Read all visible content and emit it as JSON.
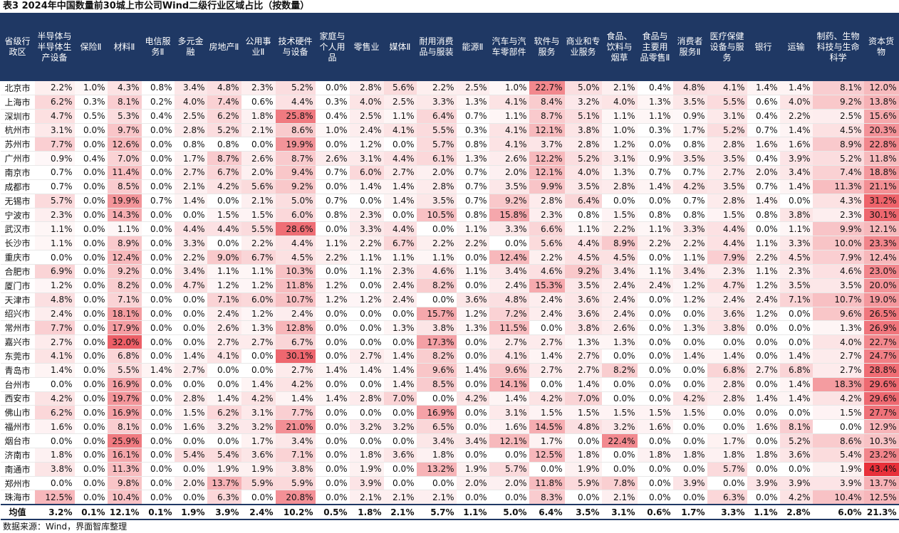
{
  "title": "表3 2024年中国数量前30城上市公司Wind二级行业区域占比（按数量）",
  "source": "数据来源：Wind，界面智库整理",
  "heat_color": "#e8303a",
  "header_color": "#1f3864",
  "columns": [
    "省级行政区",
    "半导体与半导体生产设备",
    "保险Ⅱ",
    "材料Ⅱ",
    "电信服务Ⅱ",
    "多元金融",
    "房地产Ⅱ",
    "公用事业Ⅱ",
    "技术硬件与设备",
    "家庭与个人用品",
    "零售业",
    "媒体Ⅱ",
    "耐用消费品与服装",
    "能源Ⅱ",
    "汽车与汽车零部件",
    "软件与服务",
    "商业和专业服务",
    "食品、饮料与烟草",
    "食品与主要用品零售Ⅱ",
    "消费者服务Ⅱ",
    "医疗保健设备与服务",
    "银行",
    "运输",
    "制药、生物科技与生命科学",
    "资本货物"
  ],
  "rows": [
    {
      "city": "北京市",
      "values": [
        "2.2%",
        "1.0%",
        "4.3%",
        "0.8%",
        "3.4%",
        "4.8%",
        "2.3%",
        "5.2%",
        "0.0%",
        "2.8%",
        "5.6%",
        "2.2%",
        "2.5%",
        "1.0%",
        "22.7%",
        "5.0%",
        "2.1%",
        "0.4%",
        "4.8%",
        "4.1%",
        "1.4%",
        "1.4%",
        "8.1%",
        "12.0%"
      ]
    },
    {
      "city": "上海市",
      "values": [
        "6.2%",
        "0.3%",
        "8.1%",
        "0.2%",
        "4.0%",
        "7.4%",
        "0.6%",
        "4.4%",
        "0.3%",
        "4.0%",
        "2.5%",
        "3.3%",
        "1.3%",
        "4.1%",
        "8.4%",
        "3.2%",
        "4.0%",
        "1.3%",
        "3.5%",
        "5.5%",
        "0.6%",
        "4.0%",
        "9.2%",
        "13.8%"
      ]
    },
    {
      "city": "深圳市",
      "values": [
        "4.7%",
        "0.5%",
        "5.3%",
        "0.4%",
        "2.5%",
        "6.2%",
        "1.8%",
        "25.8%",
        "0.4%",
        "2.5%",
        "1.1%",
        "6.4%",
        "0.7%",
        "1.1%",
        "8.7%",
        "5.1%",
        "1.1%",
        "1.1%",
        "0.9%",
        "3.1%",
        "0.4%",
        "2.2%",
        "2.5%",
        "15.6%"
      ]
    },
    {
      "city": "杭州市",
      "values": [
        "3.1%",
        "0.0%",
        "9.7%",
        "0.0%",
        "2.8%",
        "5.2%",
        "2.1%",
        "8.6%",
        "1.0%",
        "2.4%",
        "4.1%",
        "5.5%",
        "0.3%",
        "4.1%",
        "12.1%",
        "3.8%",
        "1.0%",
        "0.3%",
        "1.7%",
        "5.2%",
        "0.7%",
        "1.4%",
        "4.5%",
        "20.3%"
      ]
    },
    {
      "city": "苏州市",
      "values": [
        "7.7%",
        "0.0%",
        "12.6%",
        "0.0%",
        "0.8%",
        "0.8%",
        "0.0%",
        "19.9%",
        "0.0%",
        "1.2%",
        "0.0%",
        "5.7%",
        "0.8%",
        "4.1%",
        "3.7%",
        "2.8%",
        "1.2%",
        "0.0%",
        "0.8%",
        "2.8%",
        "1.6%",
        "1.6%",
        "8.9%",
        "22.8%"
      ]
    },
    {
      "city": "广州市",
      "values": [
        "0.9%",
        "0.4%",
        "7.0%",
        "0.0%",
        "1.7%",
        "8.7%",
        "2.6%",
        "8.7%",
        "2.6%",
        "3.1%",
        "4.4%",
        "6.1%",
        "1.3%",
        "2.6%",
        "12.2%",
        "5.2%",
        "3.1%",
        "0.9%",
        "3.5%",
        "3.5%",
        "0.4%",
        "3.9%",
        "5.2%",
        "11.8%"
      ]
    },
    {
      "city": "南京市",
      "values": [
        "0.7%",
        "0.0%",
        "11.4%",
        "0.0%",
        "2.7%",
        "6.7%",
        "2.0%",
        "9.4%",
        "0.7%",
        "6.0%",
        "2.7%",
        "2.0%",
        "0.7%",
        "2.0%",
        "12.1%",
        "4.0%",
        "1.3%",
        "0.7%",
        "0.7%",
        "2.7%",
        "2.0%",
        "3.4%",
        "7.4%",
        "18.8%"
      ]
    },
    {
      "city": "成都市",
      "values": [
        "0.7%",
        "0.0%",
        "8.5%",
        "0.0%",
        "2.1%",
        "4.2%",
        "5.6%",
        "9.2%",
        "0.0%",
        "1.4%",
        "1.4%",
        "2.8%",
        "0.7%",
        "3.5%",
        "9.9%",
        "3.5%",
        "2.8%",
        "1.4%",
        "4.2%",
        "3.5%",
        "0.7%",
        "1.4%",
        "11.3%",
        "21.1%"
      ]
    },
    {
      "city": "无锡市",
      "values": [
        "5.7%",
        "0.0%",
        "19.9%",
        "0.7%",
        "1.4%",
        "0.0%",
        "2.1%",
        "5.0%",
        "0.7%",
        "0.0%",
        "1.4%",
        "3.5%",
        "0.7%",
        "9.2%",
        "2.8%",
        "6.4%",
        "0.0%",
        "0.0%",
        "0.7%",
        "2.8%",
        "1.4%",
        "0.0%",
        "4.3%",
        "31.2%"
      ]
    },
    {
      "city": "宁波市",
      "values": [
        "2.3%",
        "0.0%",
        "14.3%",
        "0.0%",
        "0.0%",
        "1.5%",
        "1.5%",
        "6.0%",
        "0.8%",
        "2.3%",
        "0.0%",
        "10.5%",
        "0.8%",
        "15.8%",
        "2.3%",
        "0.8%",
        "1.5%",
        "0.8%",
        "0.8%",
        "1.5%",
        "0.8%",
        "3.8%",
        "2.3%",
        "30.1%"
      ]
    },
    {
      "city": "武汉市",
      "values": [
        "1.1%",
        "0.0%",
        "1.1%",
        "0.0%",
        "4.4%",
        "4.4%",
        "5.5%",
        "28.6%",
        "0.0%",
        "3.3%",
        "4.4%",
        "0.0%",
        "1.1%",
        "3.3%",
        "6.6%",
        "1.1%",
        "2.2%",
        "1.1%",
        "3.3%",
        "4.4%",
        "0.0%",
        "1.1%",
        "9.9%",
        "12.1%"
      ]
    },
    {
      "city": "长沙市",
      "values": [
        "1.1%",
        "0.0%",
        "8.9%",
        "0.0%",
        "3.3%",
        "0.0%",
        "2.2%",
        "4.4%",
        "1.1%",
        "2.2%",
        "6.7%",
        "2.2%",
        "2.2%",
        "0.0%",
        "5.6%",
        "4.4%",
        "8.9%",
        "2.2%",
        "2.2%",
        "4.4%",
        "1.1%",
        "3.3%",
        "10.0%",
        "23.3%"
      ]
    },
    {
      "city": "重庆市",
      "values": [
        "0.0%",
        "0.0%",
        "12.4%",
        "0.0%",
        "2.2%",
        "9.0%",
        "6.7%",
        "4.5%",
        "2.2%",
        "1.1%",
        "1.1%",
        "1.1%",
        "0.0%",
        "12.4%",
        "2.2%",
        "4.5%",
        "4.5%",
        "0.0%",
        "1.1%",
        "7.9%",
        "2.2%",
        "4.5%",
        "7.9%",
        "12.4%"
      ]
    },
    {
      "city": "合肥市",
      "values": [
        "6.9%",
        "0.0%",
        "9.2%",
        "0.0%",
        "3.4%",
        "1.1%",
        "1.1%",
        "10.3%",
        "0.0%",
        "1.1%",
        "2.3%",
        "4.6%",
        "1.1%",
        "3.4%",
        "4.6%",
        "9.2%",
        "3.4%",
        "1.1%",
        "3.4%",
        "2.3%",
        "1.1%",
        "2.3%",
        "4.6%",
        "23.0%"
      ]
    },
    {
      "city": "厦门市",
      "values": [
        "1.2%",
        "0.0%",
        "8.2%",
        "0.0%",
        "4.7%",
        "1.2%",
        "1.2%",
        "11.8%",
        "1.2%",
        "0.0%",
        "2.4%",
        "8.2%",
        "0.0%",
        "2.4%",
        "15.3%",
        "3.5%",
        "2.4%",
        "2.4%",
        "1.2%",
        "4.7%",
        "1.2%",
        "3.5%",
        "3.5%",
        "20.0%"
      ]
    },
    {
      "city": "天津市",
      "values": [
        "4.8%",
        "0.0%",
        "7.1%",
        "0.0%",
        "0.0%",
        "7.1%",
        "6.0%",
        "10.7%",
        "1.2%",
        "1.2%",
        "2.4%",
        "0.0%",
        "3.6%",
        "4.8%",
        "2.4%",
        "3.6%",
        "2.4%",
        "0.0%",
        "1.2%",
        "2.4%",
        "2.4%",
        "7.1%",
        "10.7%",
        "19.0%"
      ]
    },
    {
      "city": "绍兴市",
      "values": [
        "2.4%",
        "0.0%",
        "18.1%",
        "0.0%",
        "0.0%",
        "2.4%",
        "1.2%",
        "2.4%",
        "0.0%",
        "0.0%",
        "0.0%",
        "15.7%",
        "1.2%",
        "7.2%",
        "2.4%",
        "3.6%",
        "2.4%",
        "0.0%",
        "0.0%",
        "3.6%",
        "1.2%",
        "0.0%",
        "9.6%",
        "26.5%"
      ]
    },
    {
      "city": "常州市",
      "values": [
        "7.7%",
        "0.0%",
        "17.9%",
        "0.0%",
        "0.0%",
        "2.6%",
        "1.3%",
        "12.8%",
        "0.0%",
        "0.0%",
        "1.3%",
        "3.8%",
        "1.3%",
        "11.5%",
        "0.0%",
        "3.8%",
        "2.6%",
        "0.0%",
        "1.3%",
        "3.8%",
        "0.0%",
        "0.0%",
        "1.3%",
        "26.9%"
      ]
    },
    {
      "city": "嘉兴市",
      "values": [
        "2.7%",
        "0.0%",
        "32.0%",
        "0.0%",
        "0.0%",
        "2.7%",
        "2.7%",
        "6.7%",
        "0.0%",
        "0.0%",
        "0.0%",
        "17.3%",
        "0.0%",
        "2.7%",
        "2.7%",
        "1.3%",
        "1.3%",
        "0.0%",
        "0.0%",
        "0.0%",
        "0.0%",
        "0.0%",
        "4.0%",
        "22.7%"
      ]
    },
    {
      "city": "东莞市",
      "values": [
        "4.1%",
        "0.0%",
        "6.8%",
        "0.0%",
        "1.4%",
        "4.1%",
        "0.0%",
        "30.1%",
        "0.0%",
        "2.7%",
        "1.4%",
        "8.2%",
        "0.0%",
        "4.1%",
        "1.4%",
        "2.7%",
        "0.0%",
        "0.0%",
        "1.4%",
        "1.4%",
        "0.0%",
        "1.4%",
        "2.7%",
        "24.7%"
      ]
    },
    {
      "city": "青岛市",
      "values": [
        "1.4%",
        "0.0%",
        "5.5%",
        "1.4%",
        "2.7%",
        "0.0%",
        "0.0%",
        "2.7%",
        "1.4%",
        "1.4%",
        "1.4%",
        "9.6%",
        "1.4%",
        "9.6%",
        "2.7%",
        "2.7%",
        "8.2%",
        "0.0%",
        "0.0%",
        "6.8%",
        "2.7%",
        "6.8%",
        "2.7%",
        "28.8%"
      ]
    },
    {
      "city": "台州市",
      "values": [
        "0.0%",
        "0.0%",
        "16.9%",
        "0.0%",
        "0.0%",
        "0.0%",
        "1.4%",
        "4.2%",
        "0.0%",
        "0.0%",
        "1.4%",
        "8.5%",
        "0.0%",
        "14.1%",
        "0.0%",
        "1.4%",
        "0.0%",
        "0.0%",
        "0.0%",
        "2.8%",
        "0.0%",
        "1.4%",
        "18.3%",
        "29.6%"
      ]
    },
    {
      "city": "西安市",
      "values": [
        "4.2%",
        "0.0%",
        "19.7%",
        "0.0%",
        "2.8%",
        "1.4%",
        "4.2%",
        "1.4%",
        "1.4%",
        "2.8%",
        "7.0%",
        "0.0%",
        "4.2%",
        "1.4%",
        "4.2%",
        "7.0%",
        "0.0%",
        "0.0%",
        "4.2%",
        "2.8%",
        "1.4%",
        "1.4%",
        "4.2%",
        "29.6%"
      ]
    },
    {
      "city": "佛山市",
      "values": [
        "6.2%",
        "0.0%",
        "16.9%",
        "0.0%",
        "1.5%",
        "6.2%",
        "3.1%",
        "7.7%",
        "0.0%",
        "0.0%",
        "0.0%",
        "16.9%",
        "0.0%",
        "3.1%",
        "1.5%",
        "1.5%",
        "1.5%",
        "1.5%",
        "1.5%",
        "0.0%",
        "0.0%",
        "0.0%",
        "1.5%",
        "27.7%"
      ]
    },
    {
      "city": "福州市",
      "values": [
        "1.6%",
        "0.0%",
        "8.1%",
        "0.0%",
        "1.6%",
        "3.2%",
        "3.2%",
        "21.0%",
        "0.0%",
        "3.2%",
        "3.2%",
        "6.5%",
        "0.0%",
        "1.6%",
        "14.5%",
        "4.8%",
        "3.2%",
        "1.6%",
        "0.0%",
        "0.0%",
        "1.6%",
        "8.1%",
        "0.0%",
        "12.9%"
      ]
    },
    {
      "city": "烟台市",
      "values": [
        "0.0%",
        "0.0%",
        "25.9%",
        "0.0%",
        "0.0%",
        "0.0%",
        "1.7%",
        "3.4%",
        "0.0%",
        "0.0%",
        "0.0%",
        "3.4%",
        "3.4%",
        "12.1%",
        "1.7%",
        "0.0%",
        "22.4%",
        "0.0%",
        "0.0%",
        "1.7%",
        "0.0%",
        "5.2%",
        "8.6%",
        "10.3%"
      ]
    },
    {
      "city": "济南市",
      "values": [
        "1.8%",
        "0.0%",
        "16.1%",
        "0.0%",
        "5.4%",
        "5.4%",
        "3.6%",
        "7.1%",
        "0.0%",
        "1.8%",
        "3.6%",
        "1.8%",
        "0.0%",
        "0.0%",
        "12.5%",
        "1.8%",
        "0.0%",
        "1.8%",
        "1.8%",
        "1.8%",
        "1.8%",
        "3.6%",
        "5.4%",
        "23.2%"
      ]
    },
    {
      "city": "南通市",
      "values": [
        "3.8%",
        "0.0%",
        "11.3%",
        "0.0%",
        "0.0%",
        "1.9%",
        "1.9%",
        "3.8%",
        "0.0%",
        "1.9%",
        "0.0%",
        "13.2%",
        "1.9%",
        "5.7%",
        "0.0%",
        "1.9%",
        "0.0%",
        "0.0%",
        "0.0%",
        "5.7%",
        "0.0%",
        "0.0%",
        "1.9%",
        "43.4%"
      ]
    },
    {
      "city": "郑州市",
      "values": [
        "0.0%",
        "0.0%",
        "9.8%",
        "0.0%",
        "2.0%",
        "13.7%",
        "5.9%",
        "5.9%",
        "0.0%",
        "3.9%",
        "0.0%",
        "0.0%",
        "2.0%",
        "2.0%",
        "11.8%",
        "5.9%",
        "7.8%",
        "0.0%",
        "3.9%",
        "0.0%",
        "3.9%",
        "3.9%",
        "3.9%",
        "13.7%"
      ]
    },
    {
      "city": "珠海市",
      "values": [
        "12.5%",
        "0.0%",
        "10.4%",
        "0.0%",
        "0.0%",
        "6.3%",
        "0.0%",
        "20.8%",
        "0.0%",
        "2.1%",
        "2.1%",
        "2.1%",
        "0.0%",
        "0.0%",
        "8.3%",
        "0.0%",
        "2.1%",
        "0.0%",
        "0.0%",
        "6.3%",
        "0.0%",
        "4.2%",
        "10.4%",
        "12.5%"
      ]
    }
  ],
  "average": {
    "label": "均值",
    "values": [
      "3.2%",
      "0.1%",
      "12.1%",
      "0.1%",
      "1.9%",
      "3.9%",
      "2.4%",
      "10.2%",
      "0.5%",
      "1.8%",
      "2.1%",
      "5.7%",
      "1.1%",
      "5.0%",
      "6.4%",
      "3.5%",
      "3.1%",
      "0.6%",
      "1.7%",
      "3.3%",
      "1.1%",
      "2.8%",
      "6.0%",
      "21.3%"
    ]
  }
}
